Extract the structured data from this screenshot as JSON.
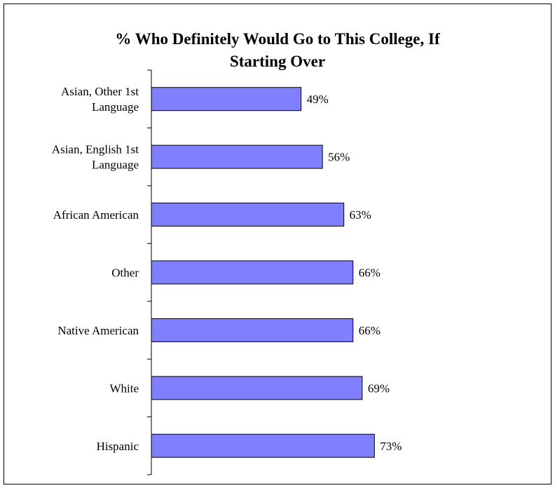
{
  "chart_data": {
    "type": "bar",
    "orientation": "horizontal",
    "title_lines": [
      "% Who Definitely Would Go to This College, If",
      "Starting Over"
    ],
    "categories": [
      [
        "Asian, Other 1st",
        "Language"
      ],
      [
        "Asian, English 1st",
        "Language"
      ],
      [
        "African American"
      ],
      [
        "Other"
      ],
      [
        "Native American"
      ],
      [
        "White"
      ],
      [
        "Hispanic"
      ]
    ],
    "values": [
      49,
      56,
      63,
      66,
      66,
      69,
      73
    ],
    "value_labels": [
      "49%",
      "56%",
      "63%",
      "66%",
      "66%",
      "69%",
      "73%"
    ],
    "xlim": [
      0,
      100
    ],
    "bar_color": "#8080ff",
    "grid": false,
    "legend": "none"
  }
}
